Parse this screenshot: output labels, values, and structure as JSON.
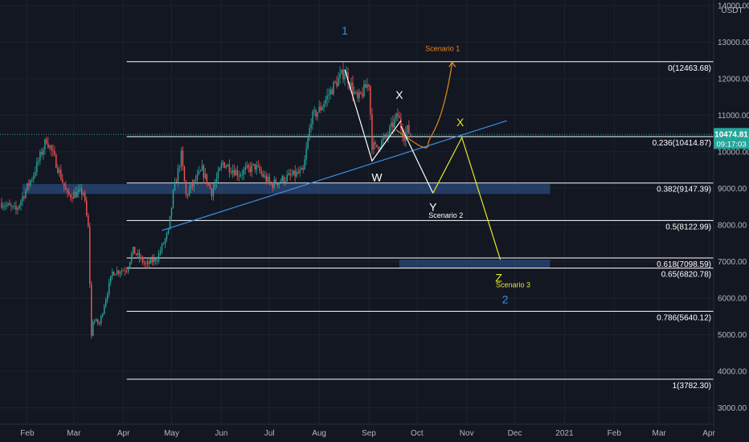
{
  "chart_data": {
    "type": "candlestick",
    "quote_currency": "USDT",
    "y_ticks": [
      3000,
      4000,
      5000,
      6000,
      7000,
      8000,
      9000,
      10000,
      11000,
      12000,
      13000,
      14000
    ],
    "y_tick_labels": [
      "3000.00",
      "4000.00",
      "5000.00",
      "6000.00",
      "7000.00",
      "8000.00",
      "9000.00",
      "10000.00",
      "11000.00",
      "12000.00",
      "13000.00",
      "14000.00"
    ],
    "ylim": [
      2550,
      14150
    ],
    "x_ticks": [
      {
        "label": "Feb",
        "date": "2020-02-01"
      },
      {
        "label": "Mar",
        "date": "2020-03-01"
      },
      {
        "label": "Apr",
        "date": "2020-04-01"
      },
      {
        "label": "May",
        "date": "2020-05-01"
      },
      {
        "label": "Jun",
        "date": "2020-06-01"
      },
      {
        "label": "Jul",
        "date": "2020-07-01"
      },
      {
        "label": "Aug",
        "date": "2020-08-01"
      },
      {
        "label": "Sep",
        "date": "2020-09-01"
      },
      {
        "label": "Oct",
        "date": "2020-10-01"
      },
      {
        "label": "Nov",
        "date": "2020-11-01"
      },
      {
        "label": "Dec",
        "date": "2020-12-01"
      },
      {
        "label": "2021",
        "date": "2021-01-01"
      },
      {
        "label": "Feb",
        "date": "2021-02-01"
      },
      {
        "label": "Mar",
        "date": "2021-03-01"
      },
      {
        "label": "Apr",
        "date": "2021-04-01"
      }
    ],
    "xlim": [
      "2020-01-15",
      "2021-04-04"
    ],
    "price_path": [
      [
        "2020-01-16",
        8600
      ],
      [
        "2020-01-25",
        8400
      ],
      [
        "2020-02-05",
        9400
      ],
      [
        "2020-02-13",
        10350
      ],
      [
        "2020-02-19",
        9700
      ],
      [
        "2020-02-26",
        8800
      ],
      [
        "2020-03-07",
        8900
      ],
      [
        "2020-03-10",
        7900
      ],
      [
        "2020-03-12",
        4950
      ],
      [
        "2020-03-13",
        5400
      ],
      [
        "2020-03-17",
        5300
      ],
      [
        "2020-03-25",
        6700
      ],
      [
        "2020-04-03",
        6800
      ],
      [
        "2020-04-07",
        7300
      ],
      [
        "2020-04-15",
        6900
      ],
      [
        "2020-04-22",
        7100
      ],
      [
        "2020-04-29",
        7800
      ],
      [
        "2020-05-02",
        8850
      ],
      [
        "2020-05-07",
        9900
      ],
      [
        "2020-05-10",
        8800
      ],
      [
        "2020-05-20",
        9500
      ],
      [
        "2020-05-26",
        8900
      ],
      [
        "2020-06-02",
        9700
      ],
      [
        "2020-06-12",
        9400
      ],
      [
        "2020-06-22",
        9600
      ],
      [
        "2020-07-02",
        9100
      ],
      [
        "2020-07-12",
        9300
      ],
      [
        "2020-07-22",
        9450
      ],
      [
        "2020-07-27",
        10900
      ],
      [
        "2020-08-02",
        11200
      ],
      [
        "2020-08-10",
        11800
      ],
      [
        "2020-08-17",
        12200
      ],
      [
        "2020-08-25",
        11400
      ],
      [
        "2020-09-01",
        11900
      ],
      [
        "2020-09-03",
        10200
      ],
      [
        "2020-09-05",
        10100
      ],
      [
        "2020-09-12",
        10400
      ],
      [
        "2020-09-19",
        11000
      ],
      [
        "2020-09-23",
        10450
      ],
      [
        "2020-09-25",
        10600
      ],
      [
        "2020-09-27",
        10475
      ]
    ],
    "current_price": {
      "value": 10474.81,
      "label": "10474.81",
      "countdown": "09:17:03"
    },
    "fib_levels": [
      {
        "ratio": "0",
        "price": 12463.68,
        "label": "0(12463.68)"
      },
      {
        "ratio": "0.236",
        "price": 10414.87,
        "label": "0.236(10414.87)"
      },
      {
        "ratio": "0.382",
        "price": 9147.39,
        "label": "0.382(9147.39)"
      },
      {
        "ratio": "0.5",
        "price": 8122.99,
        "label": "0.5(8122.99)"
      },
      {
        "ratio": "0.618",
        "price": 7098.59,
        "label": "0.618(7098.59)"
      },
      {
        "ratio": "0.65",
        "price": 6820.78,
        "label": "0.65(6820.78)"
      },
      {
        "ratio": "0.786",
        "price": 5640.12,
        "label": "0.786(5640.12)"
      },
      {
        "ratio": "1",
        "price": 3782.3,
        "label": "1(3782.30)"
      }
    ],
    "fib_start_date": "2020-04-03",
    "zones": [
      {
        "x0": "2020-01-29",
        "x1": "2020-12-23",
        "y0": 8850,
        "y1": 9120,
        "color": "#2a4a7a"
      },
      {
        "x0": "2020-09-20",
        "x1": "2020-12-23",
        "y0": 6820,
        "y1": 7050,
        "color": "#2a4a7a"
      }
    ],
    "trendline": {
      "points": [
        [
          "2020-04-25",
          7850
        ],
        [
          "2020-11-26",
          10850
        ]
      ],
      "color": "#3d8fe0"
    },
    "scenario_paths": [
      {
        "name": "Scenario 1",
        "color": "#e58a1f",
        "points": [
          [
            "2020-09-18",
            10600
          ],
          [
            "2020-09-28",
            10300
          ],
          [
            "2020-10-08",
            10200
          ],
          [
            "2020-10-16",
            10900
          ],
          [
            "2020-10-23",
            12450
          ]
        ]
      },
      {
        "name": "Scenario 2",
        "color": "#ffffff",
        "points": [
          [
            "2020-09-21",
            10700
          ],
          [
            "2020-10-11",
            8870
          ]
        ]
      },
      {
        "name": "Scenario 3",
        "color": "#e6e62a",
        "points": [
          [
            "2020-10-11",
            8870
          ],
          [
            "2020-10-29",
            10390
          ],
          [
            "2020-11-22",
            7050
          ]
        ]
      },
      {
        "name": "wave-w-x",
        "color": "#ffffff",
        "points": [
          [
            "2020-08-17",
            12250
          ],
          [
            "2020-09-03",
            9750
          ],
          [
            "2020-09-21",
            10850
          ]
        ]
      }
    ],
    "annotations": [
      {
        "text": "1",
        "date": "2020-08-17",
        "price": 13200,
        "color": "#3d8fe0",
        "size": "large"
      },
      {
        "text": "X",
        "date": "2020-09-20",
        "price": 11450,
        "color": "#ffffff",
        "size": "large"
      },
      {
        "text": "W",
        "date": "2020-09-06",
        "price": 9200,
        "color": "#ffffff",
        "size": "large"
      },
      {
        "text": "Y",
        "date": "2020-10-11",
        "price": 8380,
        "color": "#ffffff",
        "size": "large"
      },
      {
        "text": "Scenario 2",
        "date": "2020-10-19",
        "price": 8200,
        "color": "#ffffff",
        "size": "small"
      },
      {
        "text": "Scenario 1",
        "date": "2020-10-17",
        "price": 12750,
        "color": "#e58a1f",
        "size": "small"
      },
      {
        "text": "X",
        "date": "2020-10-28",
        "price": 10700,
        "color": "#e6e62a",
        "size": "large"
      },
      {
        "text": "Z",
        "date": "2020-11-21",
        "price": 6450,
        "color": "#e6e62a",
        "size": "large"
      },
      {
        "text": "Scenario 3",
        "date": "2020-11-30",
        "price": 6300,
        "color": "#e6e62a",
        "size": "small"
      },
      {
        "text": "2",
        "date": "2020-11-25",
        "price": 5860,
        "color": "#3d8fe0",
        "size": "large"
      }
    ]
  },
  "colors": {
    "background": "#131722",
    "grid_line": "#1e2230",
    "bull": "#26a69a",
    "bear": "#ef5350",
    "fib_line": "#ffffff",
    "price_badge": "#26a69a",
    "axis_text": "#b2b5be"
  }
}
